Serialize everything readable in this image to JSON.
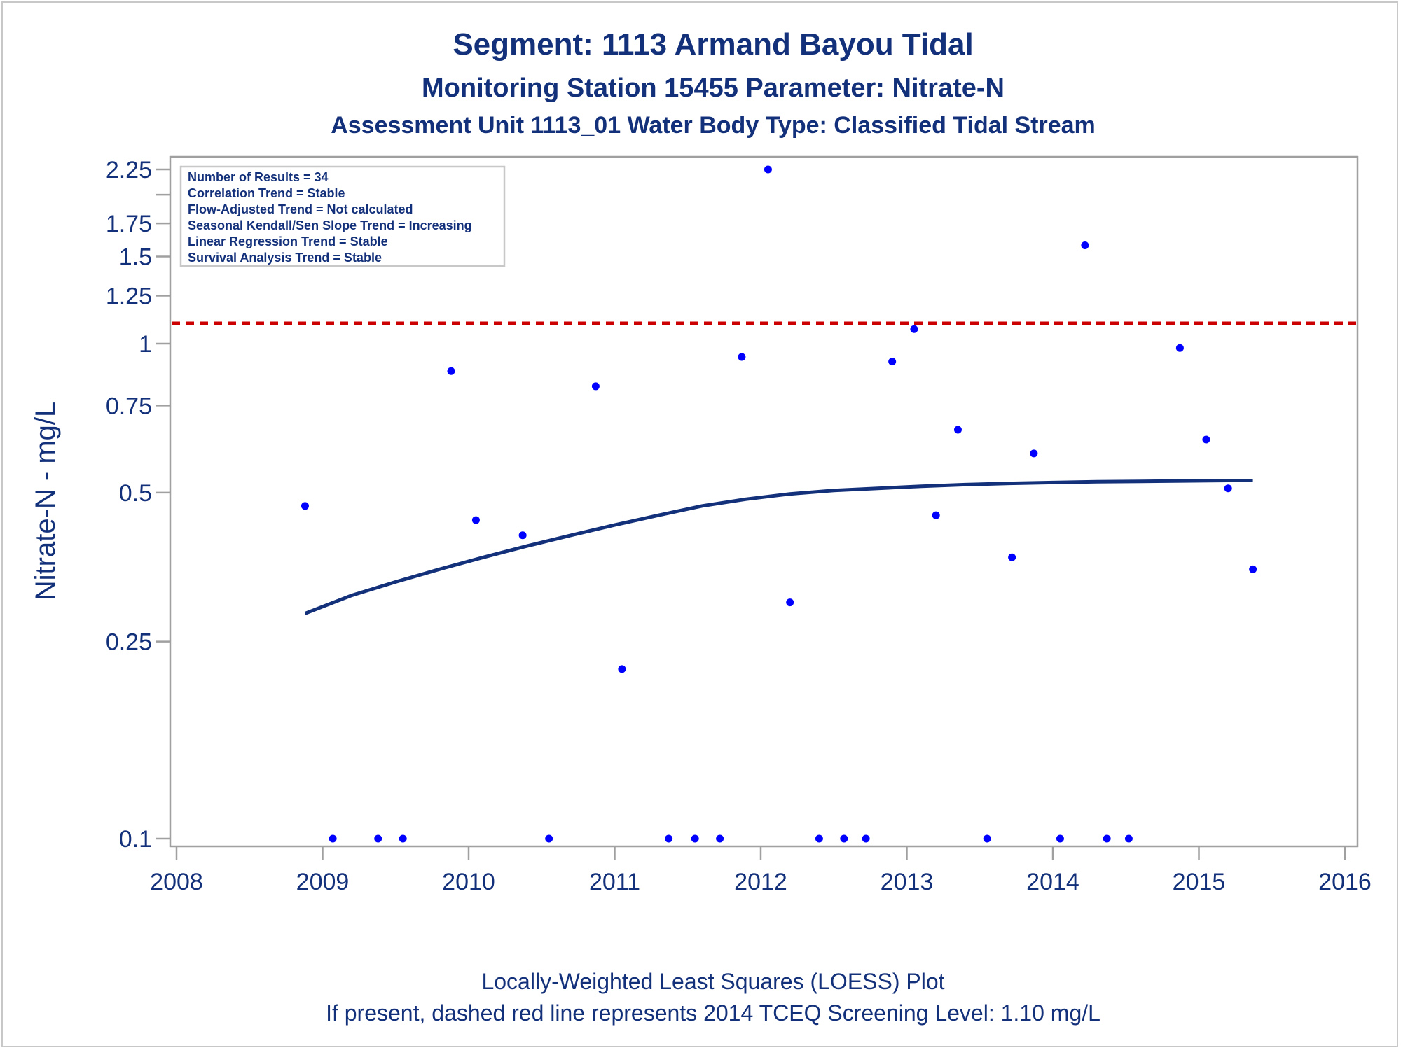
{
  "titles": {
    "line1": "Segment: 1113  Armand Bayou Tidal",
    "line2": "Monitoring Station 15455 Parameter: Nitrate-N",
    "line3": "Assessment Unit 1113_01   Water Body Type: Classified Tidal Stream"
  },
  "inset": {
    "lines": [
      "Number of Results = 34",
      "Correlation Trend = Stable",
      "Flow-Adjusted Trend = Not calculated",
      "Seasonal Kendall/Sen Slope Trend = Increasing",
      "Linear Regression Trend = Stable",
      "Survival Analysis Trend = Stable"
    ]
  },
  "footnotes": {
    "line1": "Locally-Weighted Least Squares (LOESS) Plot",
    "line2": "If present, dashed red line represents 2014 TCEQ Screening Level: 1.10 mg/L"
  },
  "colors": {
    "text": "#13307a",
    "points": "#0000ff",
    "loess": "#13307a",
    "screening_line": "#cc0000",
    "frame": "#a0a0a0"
  },
  "chart_data": {
    "type": "scatter",
    "xlabel": "",
    "ylabel": "Nitrate-N - mg/L",
    "xlim": [
      2008,
      2016
    ],
    "ylim": [
      0.1,
      2.25
    ],
    "y_scale": "log",
    "x_ticks": [
      2008,
      2009,
      2010,
      2011,
      2012,
      2013,
      2014,
      2015,
      2016
    ],
    "y_ticks": [
      0.1,
      0.25,
      0.5,
      0.75,
      1,
      1.25,
      1.5,
      1.75,
      2.25
    ],
    "y_tick_labels": [
      "0.1",
      "0.25",
      "0.5",
      "0.75",
      "1",
      "1.25",
      "1.5",
      "1.75",
      "2.25"
    ],
    "y_minor_ticks": [
      2.0
    ],
    "grid": false,
    "legend": "top-left inset",
    "points": [
      {
        "x": 2008.88,
        "y": 0.47
      },
      {
        "x": 2009.07,
        "y": 0.1
      },
      {
        "x": 2009.38,
        "y": 0.1
      },
      {
        "x": 2009.55,
        "y": 0.1
      },
      {
        "x": 2009.88,
        "y": 0.88
      },
      {
        "x": 2010.05,
        "y": 0.44
      },
      {
        "x": 2010.37,
        "y": 0.41
      },
      {
        "x": 2010.55,
        "y": 0.1
      },
      {
        "x": 2010.87,
        "y": 0.82
      },
      {
        "x": 2011.05,
        "y": 0.22
      },
      {
        "x": 2011.37,
        "y": 0.1
      },
      {
        "x": 2011.55,
        "y": 0.1
      },
      {
        "x": 2011.72,
        "y": 0.1
      },
      {
        "x": 2011.87,
        "y": 0.94
      },
      {
        "x": 2012.05,
        "y": 2.25
      },
      {
        "x": 2012.2,
        "y": 0.3
      },
      {
        "x": 2012.4,
        "y": 0.1
      },
      {
        "x": 2012.57,
        "y": 0.1
      },
      {
        "x": 2012.72,
        "y": 0.1
      },
      {
        "x": 2012.9,
        "y": 0.92
      },
      {
        "x": 2013.05,
        "y": 1.07
      },
      {
        "x": 2013.2,
        "y": 0.45
      },
      {
        "x": 2013.35,
        "y": 0.67
      },
      {
        "x": 2013.55,
        "y": 0.1
      },
      {
        "x": 2013.72,
        "y": 0.37
      },
      {
        "x": 2013.87,
        "y": 0.6
      },
      {
        "x": 2014.05,
        "y": 0.1
      },
      {
        "x": 2014.22,
        "y": 1.58
      },
      {
        "x": 2014.37,
        "y": 0.1
      },
      {
        "x": 2014.52,
        "y": 0.1
      },
      {
        "x": 2014.87,
        "y": 0.98
      },
      {
        "x": 2015.05,
        "y": 0.64
      },
      {
        "x": 2015.2,
        "y": 0.51
      },
      {
        "x": 2015.37,
        "y": 0.35
      }
    ],
    "loess": {
      "x": [
        2008.88,
        2009.2,
        2009.5,
        2009.8,
        2010.1,
        2010.4,
        2010.7,
        2011.0,
        2011.3,
        2011.6,
        2011.9,
        2012.2,
        2012.5,
        2012.8,
        2013.1,
        2013.4,
        2013.7,
        2014.0,
        2014.3,
        2014.6,
        2014.9,
        2015.2,
        2015.37
      ],
      "y": [
        0.285,
        0.31,
        0.33,
        0.35,
        0.37,
        0.39,
        0.41,
        0.43,
        0.45,
        0.47,
        0.485,
        0.497,
        0.505,
        0.51,
        0.515,
        0.519,
        0.522,
        0.524,
        0.526,
        0.527,
        0.528,
        0.529,
        0.529
      ]
    },
    "screening_level": 1.1
  }
}
